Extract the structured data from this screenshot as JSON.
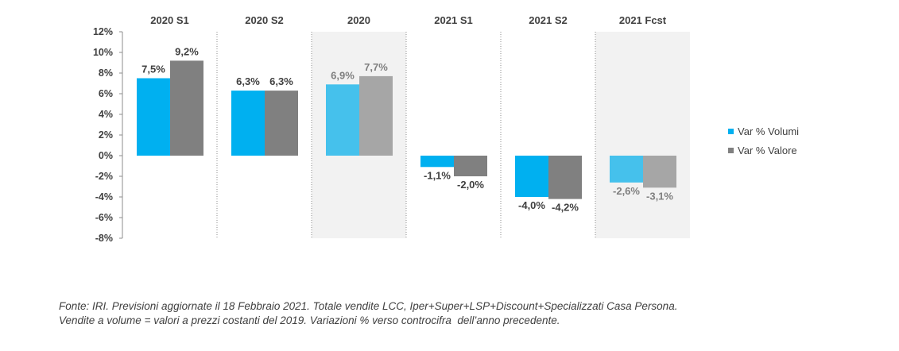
{
  "chart_data": {
    "type": "bar",
    "categories": [
      "2020 S1",
      "2020 S2",
      "2020",
      "2021 S1",
      "2021 S2",
      "2021 Fcst"
    ],
    "shaded_categories": [
      "2020",
      "2021 Fcst"
    ],
    "series": [
      {
        "name": "Var % Volumi",
        "values": [
          7.5,
          6.3,
          6.9,
          -1.1,
          -4.0,
          -2.6
        ],
        "labels": [
          "7,5%",
          "6,3%",
          "6,9%",
          "-1,1%",
          "-4,0%",
          "-2,6%"
        ]
      },
      {
        "name": "Var % Valore",
        "values": [
          9.2,
          6.3,
          7.7,
          -2.0,
          -4.2,
          -3.1
        ],
        "labels": [
          "9,2%",
          "6,3%",
          "7,7%",
          "-2,0%",
          "-4,2%",
          "-3,1%"
        ]
      }
    ],
    "ylim": [
      -8,
      12
    ],
    "yticks": [
      12,
      10,
      8,
      6,
      4,
      2,
      0,
      -2,
      -4,
      -6,
      -8
    ],
    "ytick_labels": [
      "12%",
      "10%",
      "8%",
      "6%",
      "4%",
      "2%",
      "0%",
      "-2%",
      "-4%",
      "-6%",
      "-8%"
    ],
    "legend_position": "right",
    "colors": {
      "volumi": "#00b0f0",
      "valore": "#808080",
      "volumi_light": "#45c1ec",
      "valore_light": "#a6a6a6",
      "label_dark": "#404040",
      "label_light": "#7f7f7f",
      "shade": "#f2f2f2"
    }
  },
  "legend": {
    "volumi": "Var % Volumi",
    "valore": "Var % Valore"
  },
  "source": {
    "line1": "Fonte: IRI. Previsioni aggiornate il 18 Febbraio 2021. Totale vendite LCC, Iper+Super+LSP+Discount+Specializzati Casa Persona.",
    "line2": "Vendite a volume = valori a prezzi costanti del 2019. Variazioni % verso controcifra  dell’anno precedente."
  }
}
